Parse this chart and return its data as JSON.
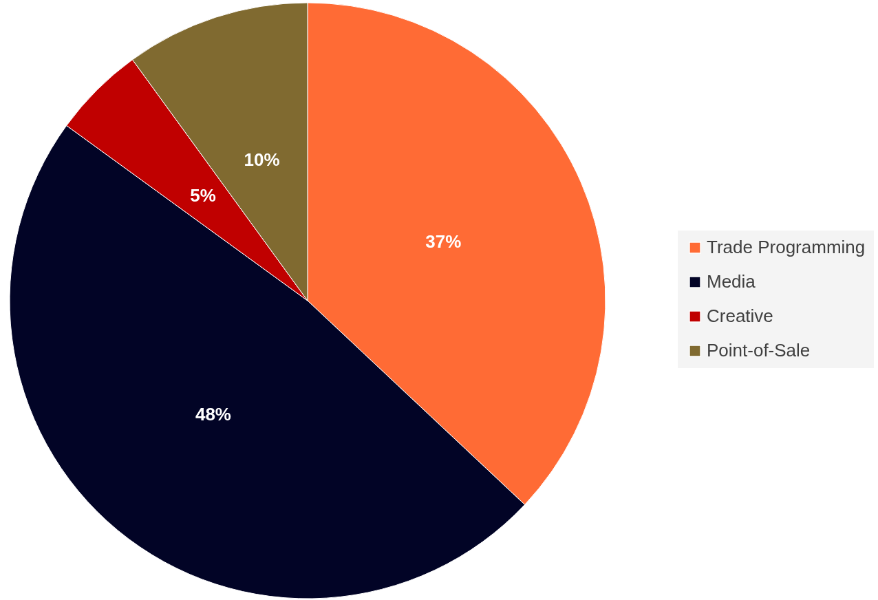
{
  "chart_data": {
    "type": "pie",
    "categories": [
      "Trade Programming",
      "Media",
      "Creative",
      "Point-of-Sale"
    ],
    "values": [
      37,
      48,
      5,
      10
    ],
    "colors": [
      "#ff6b35",
      "#020426",
      "#c00000",
      "#806a30"
    ],
    "value_labels": [
      "37%",
      "48%",
      "5%",
      "10%"
    ],
    "legend": "right"
  }
}
